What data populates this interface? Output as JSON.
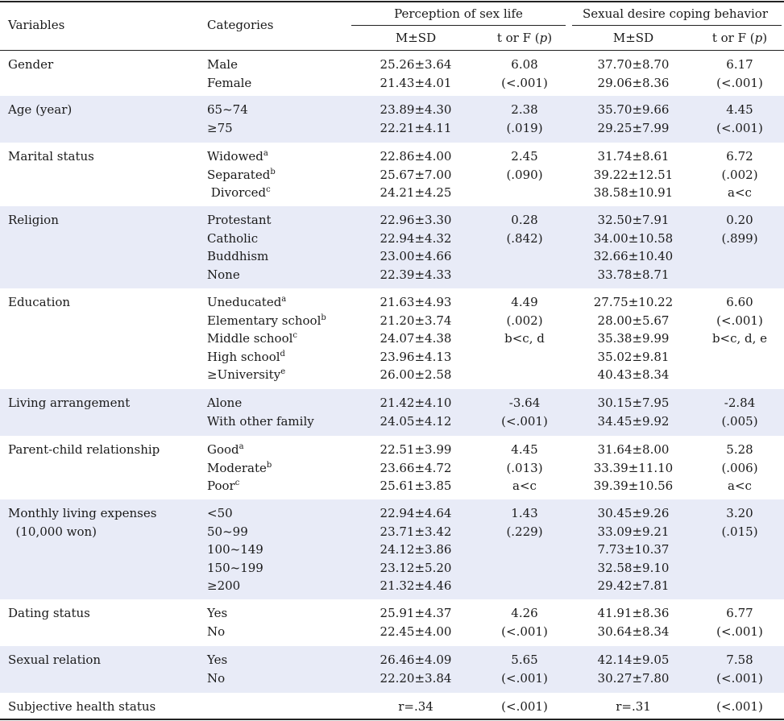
{
  "header": {
    "variables": "Variables",
    "categories": "Categories",
    "perception": "Perception of sex life",
    "coping": "Sexual desire coping behavior",
    "msd": "M±SD",
    "tf_prefix": "t or F (",
    "tf_p": "p",
    "tf_suffix": ")"
  },
  "rows": [
    {
      "variable": [
        "Gender"
      ],
      "categories": [
        {
          "text": "Male"
        },
        {
          "text": "Female"
        }
      ],
      "perception_msd": [
        "25.26±3.64",
        "21.43±4.01"
      ],
      "perception_tf": [
        "6.08",
        "(<.001)"
      ],
      "coping_msd": [
        "37.70±8.70",
        "29.06±8.36"
      ],
      "coping_tf": [
        "6.17",
        "(<.001)"
      ]
    },
    {
      "variable": [
        "Age (year)"
      ],
      "categories": [
        {
          "text": "65~74"
        },
        {
          "text": "≥75"
        }
      ],
      "perception_msd": [
        "23.89±4.30",
        "22.21±4.11"
      ],
      "perception_tf": [
        "2.38",
        "(.019)"
      ],
      "coping_msd": [
        "35.70±9.66",
        "29.25±7.99"
      ],
      "coping_tf": [
        "4.45",
        "(<.001)"
      ]
    },
    {
      "variable": [
        "Marital status"
      ],
      "categories": [
        {
          "text": "Widowed",
          "sup": "a"
        },
        {
          "text": "Separated",
          "sup": "b"
        },
        {
          "text": " Divorced",
          "sup": "c"
        }
      ],
      "perception_msd": [
        "22.86±4.00",
        "25.67±7.00",
        "24.21±4.25"
      ],
      "perception_tf": [
        "2.45",
        "(.090)"
      ],
      "coping_msd": [
        "31.74±8.61",
        "39.22±12.51",
        "38.58±10.91"
      ],
      "coping_tf": [
        "6.72",
        "(.002)",
        "a<c"
      ]
    },
    {
      "variable": [
        "Religion"
      ],
      "categories": [
        {
          "text": "Protestant"
        },
        {
          "text": "Catholic"
        },
        {
          "text": "Buddhism"
        },
        {
          "text": "None"
        }
      ],
      "perception_msd": [
        "22.96±3.30",
        "22.94±4.32",
        "23.00±4.66",
        "22.39±4.33"
      ],
      "perception_tf": [
        "0.28",
        "(.842)"
      ],
      "coping_msd": [
        "32.50±7.91",
        "34.00±10.58",
        "32.66±10.40",
        "33.78±8.71"
      ],
      "coping_tf": [
        "0.20",
        "(.899)"
      ]
    },
    {
      "variable": [
        "Education"
      ],
      "categories": [
        {
          "text": "Uneducated",
          "sup": "a"
        },
        {
          "text": "Elementary school",
          "sup": "b"
        },
        {
          "text": "Middle school",
          "sup": "c"
        },
        {
          "text": "High school",
          "sup": "d"
        },
        {
          "text": "≥University",
          "sup": "e"
        }
      ],
      "perception_msd": [
        "21.63±4.93",
        "21.20±3.74",
        "24.07±4.38",
        "23.96±4.13",
        "26.00±2.58"
      ],
      "perception_tf": [
        "4.49",
        "(.002)",
        "b<c, d"
      ],
      "coping_msd": [
        "27.75±10.22",
        "28.00±5.67",
        "35.38±9.99",
        "35.02±9.81",
        "40.43±8.34"
      ],
      "coping_tf": [
        "6.60",
        "(<.001)",
        "b<c, d, e"
      ]
    },
    {
      "variable": [
        "Living arrangement"
      ],
      "categories": [
        {
          "text": "Alone"
        },
        {
          "text": "With other family"
        }
      ],
      "perception_msd": [
        "21.42±4.10",
        "24.05±4.12"
      ],
      "perception_tf": [
        "-3.64",
        "(<.001)"
      ],
      "coping_msd": [
        "30.15±7.95",
        "34.45±9.92"
      ],
      "coping_tf": [
        "-2.84",
        "(.005)"
      ]
    },
    {
      "variable": [
        "Parent-child relationship"
      ],
      "categories": [
        {
          "text": "Good",
          "sup": "a"
        },
        {
          "text": "Moderate",
          "sup": "b"
        },
        {
          "text": "Poor",
          "sup": "c"
        }
      ],
      "perception_msd": [
        "22.51±3.99",
        "23.66±4.72",
        "25.61±3.85"
      ],
      "perception_tf": [
        "4.45",
        "(.013)",
        "a<c"
      ],
      "coping_msd": [
        "31.64±8.00",
        "33.39±11.10",
        "39.39±10.56"
      ],
      "coping_tf": [
        "5.28",
        "(.006)",
        "a<c"
      ]
    },
    {
      "variable": [
        "Monthly living expenses",
        "  (10,000 won)"
      ],
      "categories": [
        {
          "text": "<50"
        },
        {
          "text": "50~99"
        },
        {
          "text": "100~149"
        },
        {
          "text": "150~199"
        },
        {
          "text": "≥200"
        }
      ],
      "perception_msd": [
        "22.94±4.64",
        "23.71±3.42",
        "24.12±3.86",
        "23.12±5.20",
        "21.32±4.46"
      ],
      "perception_tf": [
        "1.43",
        "(.229)"
      ],
      "coping_msd": [
        "30.45±9.26",
        "33.09±9.21",
        "7.73±10.37",
        "32.58±9.10",
        "29.42±7.81"
      ],
      "coping_tf": [
        "3.20",
        "(.015)"
      ]
    },
    {
      "variable": [
        "Dating status"
      ],
      "categories": [
        {
          "text": "Yes"
        },
        {
          "text": "No"
        }
      ],
      "perception_msd": [
        "25.91±4.37",
        "22.45±4.00"
      ],
      "perception_tf": [
        "4.26",
        "(<.001)"
      ],
      "coping_msd": [
        "41.91±8.36",
        "30.64±8.34"
      ],
      "coping_tf": [
        "6.77",
        "(<.001)"
      ]
    },
    {
      "variable": [
        "Sexual relation"
      ],
      "categories": [
        {
          "text": "Yes"
        },
        {
          "text": "No"
        }
      ],
      "perception_msd": [
        "26.46±4.09",
        "22.20±3.84"
      ],
      "perception_tf": [
        "5.65",
        "(<.001)"
      ],
      "coping_msd": [
        "42.14±9.05",
        "30.27±7.80"
      ],
      "coping_tf": [
        "7.58",
        "(<.001)"
      ]
    },
    {
      "variable": [
        "Subjective health status"
      ],
      "categories": [],
      "perception_msd": [
        "r=.34"
      ],
      "perception_tf": [
        "(<.001)"
      ],
      "coping_msd": [
        "r=.31"
      ],
      "coping_tf": [
        "(<.001)"
      ]
    }
  ]
}
